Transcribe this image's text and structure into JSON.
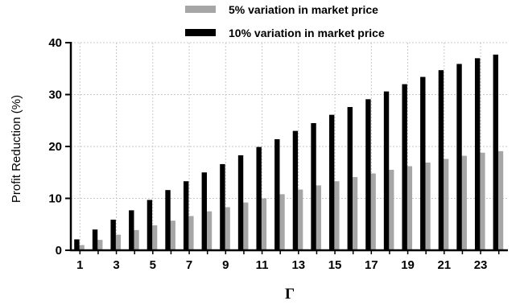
{
  "chart_data": {
    "type": "bar",
    "title": "",
    "xlabel": "Γ",
    "ylabel": "Profit Reduction (%)",
    "ylim": [
      0,
      40
    ],
    "yticks": [
      0,
      10,
      20,
      30,
      40
    ],
    "grid": true,
    "legend_position": "top-center",
    "categories": [
      1,
      2,
      3,
      4,
      5,
      6,
      7,
      8,
      9,
      10,
      11,
      12,
      13,
      14,
      15,
      16,
      17,
      18,
      19,
      20,
      21,
      22,
      23,
      24
    ],
    "xtick_labels": [
      "1",
      "3",
      "5",
      "7",
      "9",
      "11",
      "13",
      "15",
      "17",
      "19",
      "21",
      "23"
    ],
    "series": [
      {
        "name": "5% variation in market price",
        "color": "#a6a6a6",
        "values": [
          1.0,
          2.0,
          3.0,
          3.9,
          4.8,
          5.7,
          6.6,
          7.5,
          8.3,
          9.2,
          10.0,
          10.8,
          11.7,
          12.5,
          13.3,
          14.1,
          14.8,
          15.5,
          16.2,
          16.9,
          17.6,
          18.2,
          18.8,
          19.1
        ]
      },
      {
        "name": "10% variation in market price",
        "color": "#000000",
        "values": [
          2.1,
          4.0,
          5.9,
          7.7,
          9.7,
          11.6,
          13.3,
          15.0,
          16.6,
          18.3,
          19.9,
          21.4,
          23.0,
          24.5,
          26.1,
          27.6,
          29.1,
          30.6,
          32.0,
          33.4,
          34.7,
          35.9,
          37.0,
          37.7
        ]
      }
    ]
  }
}
